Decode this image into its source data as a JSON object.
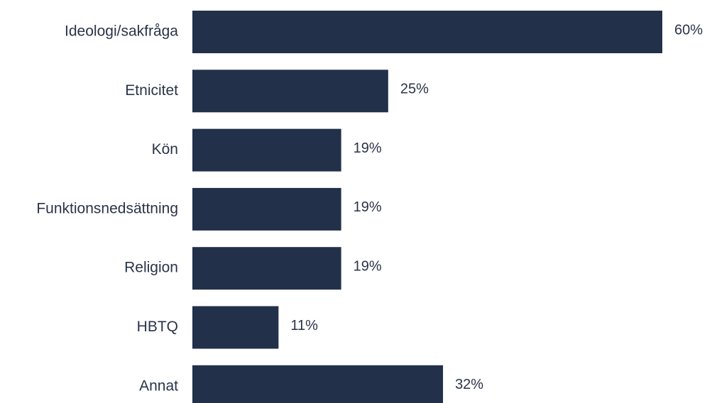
{
  "chart_data": {
    "type": "bar",
    "orientation": "horizontal",
    "categories": [
      "Ideologi/sakfråga",
      "Etnicitet",
      "Kön",
      "Funktionsnedsättning",
      "Religion",
      "HBTQ",
      "Annat"
    ],
    "values": [
      60,
      25,
      19,
      19,
      19,
      11,
      32
    ],
    "value_labels": [
      "60%",
      "25%",
      "19%",
      "19%",
      "19%",
      "11%",
      "32%"
    ],
    "title": "",
    "xlabel": "",
    "ylabel": "",
    "xlim": [
      0,
      60
    ],
    "grid": false,
    "legend": "none"
  },
  "colors": {
    "bar": "#22304a",
    "text": "#2a3448",
    "background": "#ffffff"
  }
}
